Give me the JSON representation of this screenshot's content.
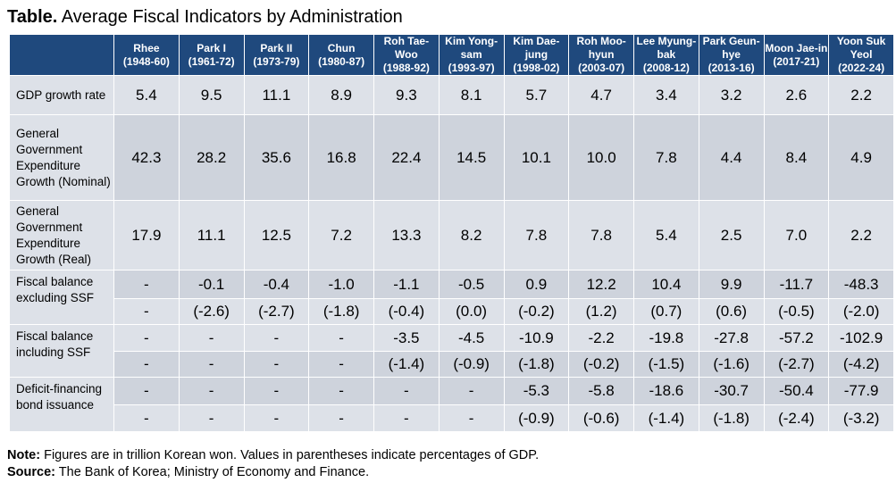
{
  "title": {
    "bold": "Table.",
    "text": "Average Fiscal Indicators by Administration"
  },
  "columns": [
    {
      "name": "Rhee",
      "years": "(1948-60)"
    },
    {
      "name": "Park I",
      "years": "(1961-72)"
    },
    {
      "name": "Park II",
      "years": "(1973-79)"
    },
    {
      "name": "Chun",
      "years": "(1980-87)"
    },
    {
      "name": "Roh Tae-Woo",
      "years": "(1988-92)"
    },
    {
      "name": "Kim Yong-sam",
      "years": "(1993-97)"
    },
    {
      "name": "Kim Dae-jung",
      "years": "(1998-02)"
    },
    {
      "name": "Roh Moo-hyun",
      "years": "(2003-07)"
    },
    {
      "name": "Lee Myung-bak",
      "years": "(2008-12)"
    },
    {
      "name": "Park Geun-hye",
      "years": "(2013-16)"
    },
    {
      "name": "Moon Jae-in",
      "years": "(2017-21)"
    },
    {
      "name": "Yoon Suk Yeol",
      "years": "(2022-24)"
    }
  ],
  "rows": [
    {
      "label": "GDP growth rate",
      "values": [
        "5.4",
        "9.5",
        "11.1",
        "8.9",
        "9.3",
        "8.1",
        "5.7",
        "4.7",
        "3.4",
        "3.2",
        "2.6",
        "2.2"
      ]
    },
    {
      "label": "General Government Expenditure Growth (Nominal)",
      "values": [
        "42.3",
        "28.2",
        "35.6",
        "16.8",
        "22.4",
        "14.5",
        "10.1",
        "10.0",
        "7.8",
        "4.4",
        "8.4",
        "4.9"
      ]
    },
    {
      "label": "General Government Expenditure Growth (Real)",
      "values": [
        "17.9",
        "11.1",
        "12.5",
        "7.2",
        "13.3",
        "8.2",
        "7.8",
        "7.8",
        "5.4",
        "2.5",
        "7.0",
        "2.2"
      ]
    },
    {
      "label": "Fiscal balance excluding SSF",
      "values": [
        "-",
        "-0.1",
        "-0.4",
        "-1.0",
        "-1.1",
        "-0.5",
        "0.9",
        "12.2",
        "10.4",
        "9.9",
        "-11.7",
        "-48.3"
      ],
      "gdp_share": [
        "-",
        "(-2.6)",
        "(-2.7)",
        "(-1.8)",
        "(-0.4)",
        "(0.0)",
        "(-0.2)",
        "(1.2)",
        "(0.7)",
        "(0.6)",
        "(-0.5)",
        "(-2.0)"
      ]
    },
    {
      "label": "Fiscal balance including SSF",
      "values": [
        "-",
        "-",
        "-",
        "-",
        "-3.5",
        "-4.5",
        "-10.9",
        "-2.2",
        "-19.8",
        "-27.8",
        "-57.2",
        "-102.9"
      ],
      "gdp_share": [
        "-",
        "-",
        "-",
        "-",
        "(-1.4)",
        "(-0.9)",
        "(-1.8)",
        "(-0.2)",
        "(-1.5)",
        "(-1.6)",
        "(-2.7)",
        "(-4.2)"
      ]
    },
    {
      "label": "Deficit-financing bond issuance",
      "values": [
        "-",
        "-",
        "-",
        "-",
        "-",
        "-",
        "-5.3",
        "-5.8",
        "-18.6",
        "-30.7",
        "-50.4",
        "-77.9"
      ],
      "gdp_share": [
        "-",
        "-",
        "-",
        "-",
        "-",
        "-",
        "(-0.9)",
        "(-0.6)",
        "(-1.4)",
        "(-1.8)",
        "(-2.4)",
        "(-3.2)"
      ]
    }
  ],
  "notes": {
    "note_label": "Note:",
    "note_text": "Figures are in trillion Korean won. Values in parentheses indicate percentages of GDP.",
    "source_label": "Source:",
    "source_text": "The Bank of Korea; Ministry of Economy and Finance."
  },
  "colors": {
    "header_bg": "#1f497d",
    "row_light": "#dde1e8",
    "row_dark": "#ced3dc"
  }
}
